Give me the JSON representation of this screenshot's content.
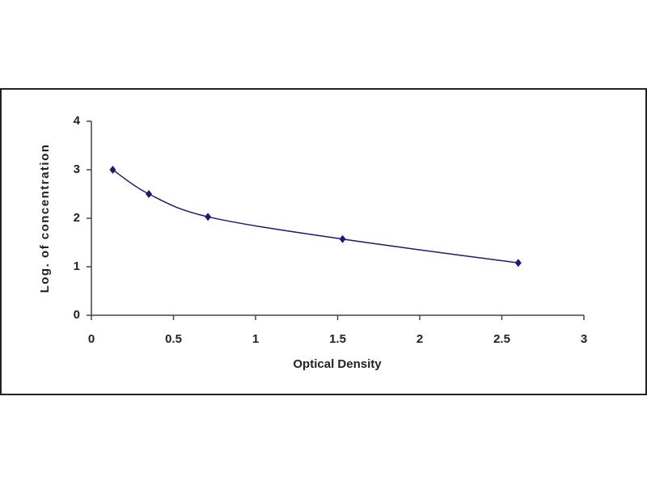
{
  "chart_data": {
    "type": "line",
    "x_label": "Optical Density",
    "y_label": "Log. of concentration",
    "x": [
      0.13,
      0.35,
      0.71,
      1.53,
      2.6
    ],
    "values": [
      3.0,
      2.5,
      2.03,
      1.57,
      1.08
    ],
    "color": "#1c1c6b",
    "xlim": [
      0,
      3
    ],
    "xticks": [
      0,
      0.5,
      1,
      1.5,
      2,
      2.5,
      3
    ],
    "ylim": [
      0,
      4
    ],
    "yticks": [
      0,
      1,
      2,
      3,
      4
    ],
    "grid": false,
    "smooth": true
  }
}
